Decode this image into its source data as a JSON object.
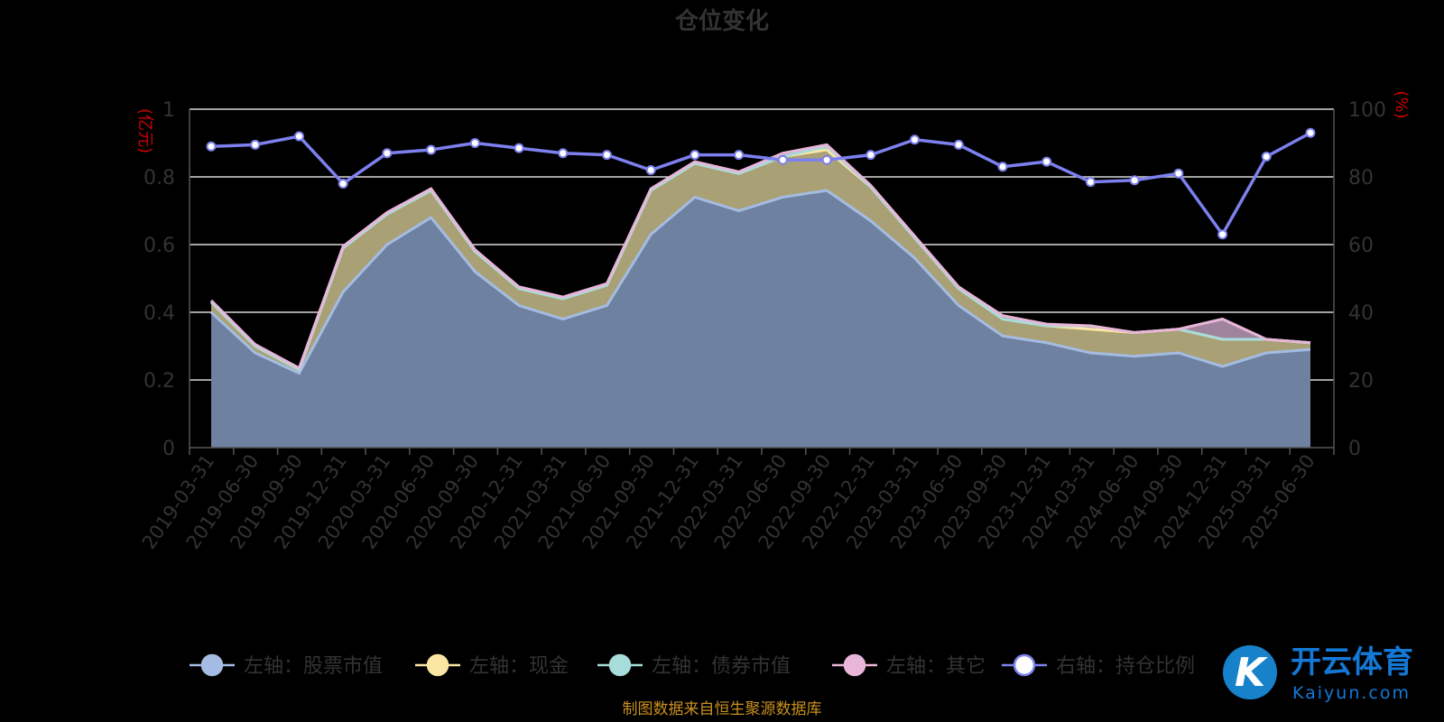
{
  "chart_data": {
    "type": "area",
    "title": "仓位变化",
    "left_unit": "(亿元)",
    "right_unit": "(%)",
    "ylim_left": [
      0,
      1
    ],
    "ylim_right": [
      0,
      100
    ],
    "y_ticks_left": [
      "0",
      "0.2",
      "0.4",
      "0.6",
      "0.8",
      "1"
    ],
    "y_ticks_right": [
      "0",
      "20",
      "40",
      "60",
      "80",
      "100"
    ],
    "grid": true,
    "legend_position": "bottom",
    "categories": [
      "2019-03-31",
      "2019-06-30",
      "2019-09-30",
      "2019-12-31",
      "2020-03-31",
      "2020-06-30",
      "2020-09-30",
      "2020-12-31",
      "2021-03-31",
      "2021-06-30",
      "2021-09-30",
      "2021-12-31",
      "2022-03-31",
      "2022-06-30",
      "2022-09-30",
      "2022-12-31",
      "2023-03-31",
      "2023-06-30",
      "2023-09-30",
      "2023-12-31",
      "2024-03-31",
      "2024-06-30",
      "2024-09-30",
      "2024-12-31",
      "2025-03-31",
      "2025-06-30"
    ],
    "series": [
      {
        "name": "左轴：股票市值",
        "axis": "left",
        "color": "#a4bce3",
        "values": [
          0.4,
          0.28,
          0.22,
          0.46,
          0.6,
          0.68,
          0.52,
          0.42,
          0.38,
          0.42,
          0.63,
          0.74,
          0.7,
          0.74,
          0.76,
          0.67,
          0.56,
          0.42,
          0.33,
          0.31,
          0.28,
          0.27,
          0.28,
          0.24,
          0.28,
          0.29
        ]
      },
      {
        "name": "左轴：现金",
        "axis": "left",
        "color": "#fbe6a4",
        "values": [
          0.03,
          0.02,
          0.01,
          0.13,
          0.09,
          0.08,
          0.06,
          0.05,
          0.06,
          0.06,
          0.13,
          0.1,
          0.11,
          0.12,
          0.12,
          0.1,
          0.06,
          0.05,
          0.05,
          0.05,
          0.07,
          0.07,
          0.07,
          0.08,
          0.04,
          0.02
        ]
      },
      {
        "name": "左轴：债券市值",
        "axis": "left",
        "color": "#a6dcd9",
        "values": [
          0,
          0,
          0,
          0,
          0,
          0,
          0,
          0,
          0,
          0,
          0,
          0,
          0,
          0,
          0.01,
          0,
          0,
          0,
          0,
          0,
          0.01,
          0,
          0,
          0,
          0,
          0
        ]
      },
      {
        "name": "左轴：其它",
        "axis": "left",
        "color": "#e8b6d9",
        "values": [
          0.005,
          0.005,
          0.005,
          0.005,
          0.005,
          0.005,
          0.005,
          0.005,
          0.005,
          0.005,
          0.005,
          0.005,
          0.005,
          0.01,
          0.005,
          0.005,
          0.005,
          0.005,
          0.01,
          0.005,
          0,
          0,
          0,
          0.06,
          0,
          0
        ]
      },
      {
        "name": "右轴：持仓比例",
        "axis": "right",
        "color": "#7d80ee",
        "values": [
          89,
          89.5,
          92,
          78,
          87,
          88,
          90,
          88.5,
          87,
          86.5,
          82,
          86.5,
          86.5,
          85,
          85,
          86.5,
          91,
          89.5,
          83,
          84.5,
          78.5,
          79,
          81,
          63,
          86,
          93
        ]
      }
    ]
  },
  "source_note": "制图数据来自恒生聚源数据库",
  "watermark": {
    "main": "开云体育",
    "sub": "Kaiyun.com",
    "badge": "K"
  }
}
